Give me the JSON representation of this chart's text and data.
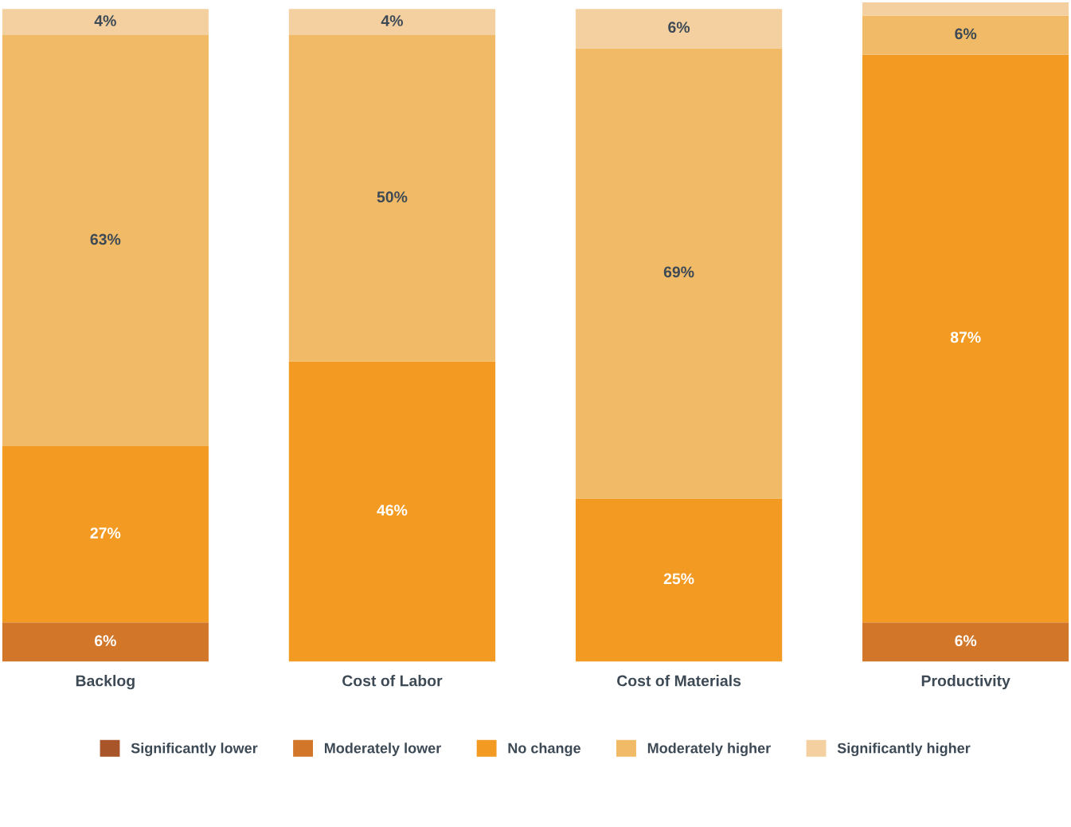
{
  "chart_data": {
    "type": "bar",
    "stacked": true,
    "categories": [
      "Backlog",
      "Cost of Labor",
      "Cost of Materials",
      "Productivity"
    ],
    "series": [
      {
        "name": "Significantly lower",
        "color": "#a9552a",
        "values": [
          null,
          null,
          null,
          null
        ]
      },
      {
        "name": "Moderately lower",
        "color": "#d2772a",
        "values": [
          6,
          null,
          null,
          6
        ],
        "value_labels": [
          "6%",
          null,
          null,
          "6%"
        ]
      },
      {
        "name": "No change",
        "color": "#f29a22",
        "values": [
          27,
          46,
          25,
          87
        ],
        "value_labels": [
          "27%",
          "46%",
          "25%",
          "87%"
        ]
      },
      {
        "name": "Moderately higher",
        "color": "#f1ba66",
        "values": [
          63,
          50,
          69,
          6
        ],
        "value_labels": [
          "63%",
          "50%",
          "69%",
          "6%"
        ]
      },
      {
        "name": "Significantly higher",
        "color": "#f4d0a1",
        "values": [
          4,
          4,
          6,
          2
        ],
        "value_labels": [
          "4%",
          "4%",
          "6%",
          null
        ]
      }
    ],
    "legend": "bottom",
    "grid": false,
    "tick_labels": "x"
  }
}
